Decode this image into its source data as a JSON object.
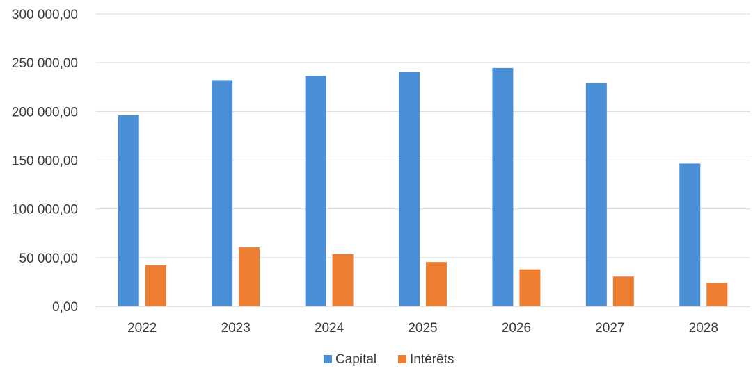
{
  "chart_data": {
    "type": "bar",
    "categories": [
      "2022",
      "2023",
      "2024",
      "2025",
      "2026",
      "2027",
      "2028"
    ],
    "series": [
      {
        "name": "Capital",
        "values": [
          196000,
          232000,
          236500,
          240500,
          244500,
          229000,
          146500
        ],
        "color": "#4a8fd6"
      },
      {
        "name": "Intérêts",
        "values": [
          42000,
          60500,
          53500,
          45500,
          38000,
          30500,
          24000
        ],
        "color": "#ed7d31"
      }
    ],
    "ylim": [
      0,
      300000
    ],
    "yticks": [
      0,
      50000,
      100000,
      150000,
      200000,
      250000,
      300000
    ],
    "ytick_labels": [
      "0,00",
      "50 000,00",
      "100 000,00",
      "150 000,00",
      "200 000,00",
      "250 000,00",
      "300 000,00"
    ],
    "grid": true,
    "legend": "bottom-center",
    "title": "",
    "xlabel": "",
    "ylabel": ""
  }
}
